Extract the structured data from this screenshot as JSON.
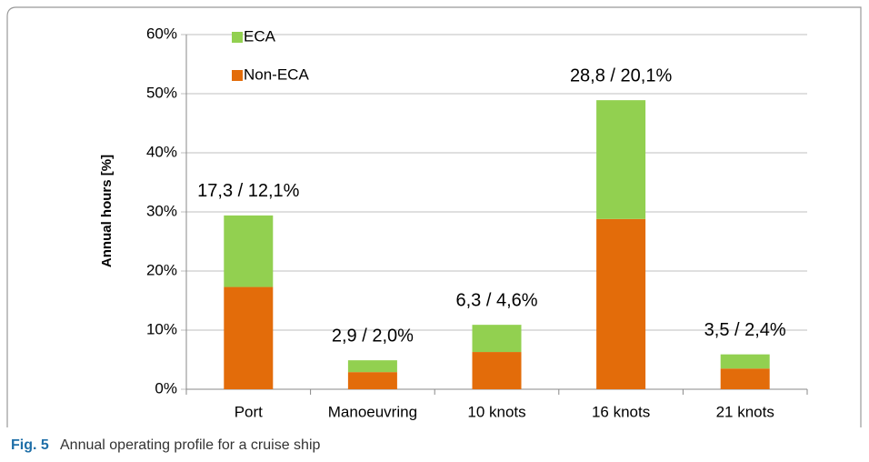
{
  "chart_data": {
    "type": "stacked_bar",
    "y_label": "Annual hours [%]",
    "categories": [
      "Port",
      "Manoeuvring",
      "10 knots",
      "16 knots",
      "21 knots"
    ],
    "series": [
      {
        "name": "Non-ECA",
        "color": "#e36c0a",
        "values": [
          17.3,
          2.9,
          6.3,
          28.8,
          3.5
        ]
      },
      {
        "name": "ECA",
        "color": "#92d050",
        "values": [
          12.1,
          2.0,
          4.6,
          20.1,
          2.4
        ]
      }
    ],
    "annotations": [
      "17,3 / 12,1%",
      "2,9 / 2,0%",
      "6,3 / 4,6%",
      "28,8 / 20,1%",
      "3,5 / 2,4%"
    ],
    "ylim": [
      0,
      60
    ],
    "yticks": [
      {
        "value": 0,
        "label": "0%"
      },
      {
        "value": 10,
        "label": "10%"
      },
      {
        "value": 20,
        "label": "20%"
      },
      {
        "value": 30,
        "label": "30%"
      },
      {
        "value": 40,
        "label": "40%"
      },
      {
        "value": 50,
        "label": "50%"
      },
      {
        "value": 60,
        "label": "60%"
      }
    ],
    "grid": true,
    "legend": "upper left"
  },
  "caption": {
    "label": "Fig. 5",
    "text": "Annual operating profile for a cruise ship"
  }
}
